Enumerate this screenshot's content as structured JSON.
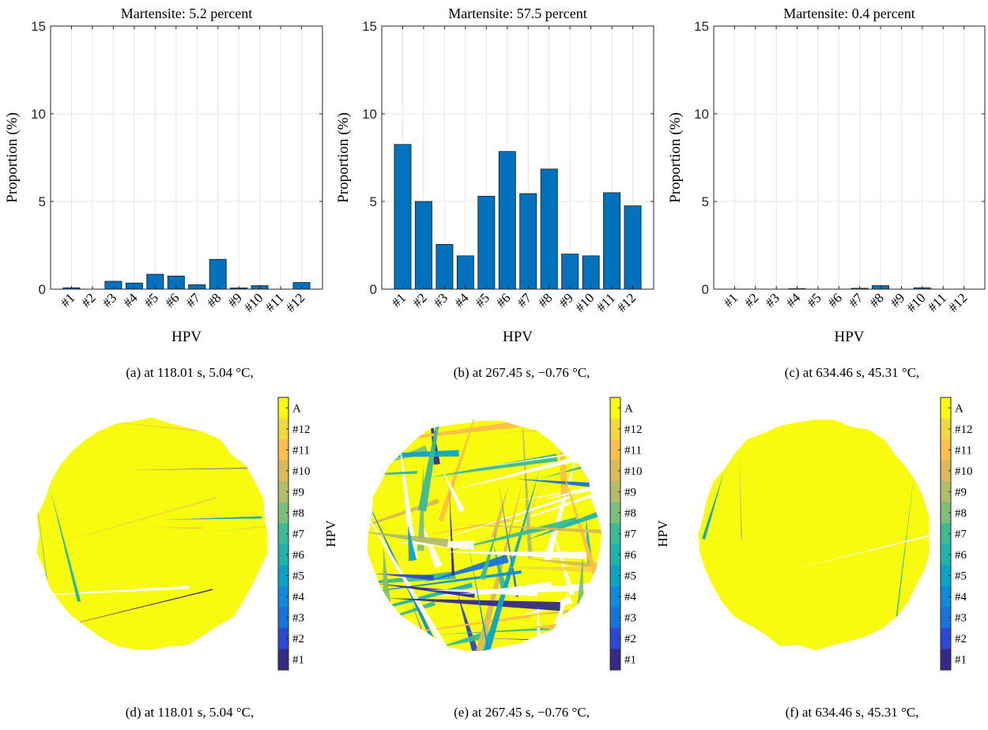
{
  "colors": {
    "bar_fill": "#0072BD",
    "grid": "#e6e6e6",
    "colormap": [
      "#352A87",
      "#2C48D6",
      "#1773DE",
      "#0D8CDB",
      "#09A5C7",
      "#1EB5AE",
      "#3BBB93",
      "#7DBF7A",
      "#B3BC69",
      "#D9BA56",
      "#FCBF49",
      "#F2D93A",
      "#F9FB0E"
    ]
  },
  "chart_data": [
    {
      "type": "bar",
      "title": "Martensite: 5.2 percent",
      "xlabel": "HPV",
      "ylabel": "Proportion (%)",
      "ylim": [
        0,
        15
      ],
      "yticks": [
        "0",
        "5",
        "10",
        "15"
      ],
      "grid": true,
      "categories": [
        "#1",
        "#2",
        "#3",
        "#4",
        "#5",
        "#6",
        "#7",
        "#8",
        "#9",
        "#10",
        "#11",
        "#12"
      ],
      "values": [
        0.08,
        0.0,
        0.45,
        0.35,
        0.85,
        0.75,
        0.25,
        1.7,
        0.07,
        0.2,
        0.0,
        0.38
      ]
    },
    {
      "type": "bar",
      "title": "Martensite: 57.5 percent",
      "xlabel": "HPV",
      "ylabel": "Proportion (%)",
      "ylim": [
        0,
        15
      ],
      "yticks": [
        "0",
        "5",
        "10",
        "15"
      ],
      "grid": true,
      "categories": [
        "#1",
        "#2",
        "#3",
        "#4",
        "#5",
        "#6",
        "#7",
        "#8",
        "#9",
        "#10",
        "#11",
        "#12"
      ],
      "values": [
        8.25,
        5.0,
        2.55,
        1.9,
        5.3,
        7.85,
        5.45,
        6.85,
        2.0,
        1.9,
        5.5,
        4.75
      ]
    },
    {
      "type": "bar",
      "title": "Martensite: 0.4 percent",
      "xlabel": "HPV",
      "ylabel": "Proportion (%)",
      "ylim": [
        0,
        15
      ],
      "yticks": [
        "0",
        "5",
        "10",
        "15"
      ],
      "grid": true,
      "categories": [
        "#1",
        "#2",
        "#3",
        "#4",
        "#5",
        "#6",
        "#7",
        "#8",
        "#9",
        "#10",
        "#11",
        "#12"
      ],
      "values": [
        0.0,
        0.0,
        0.0,
        0.03,
        0.0,
        0.0,
        0.05,
        0.2,
        0.0,
        0.08,
        0.0,
        0.0
      ]
    }
  ],
  "captions": {
    "a": "(a) at 118.01 s, 5.04 °C,",
    "b": "(b) at 267.45 s, −0.76 °C,",
    "c": "(c) at 634.46 s, 45.31 °C,",
    "d": "(d) at 118.01 s, 5.04 °C,",
    "e": "(e) at 267.45 s, −0.76 °C,",
    "f": "(f) at 634.46 s, 45.31 °C,"
  },
  "colorbar": {
    "label": "HPV",
    "labels": [
      "A",
      "#12",
      "#11",
      "#10",
      "#9",
      "#8",
      "#7",
      "#6",
      "#5",
      "#4",
      "#3",
      "#2",
      "#1"
    ]
  },
  "maps": [
    {
      "martensite_fraction": 0.052
    },
    {
      "martensite_fraction": 0.575
    },
    {
      "martensite_fraction": 0.004
    }
  ]
}
